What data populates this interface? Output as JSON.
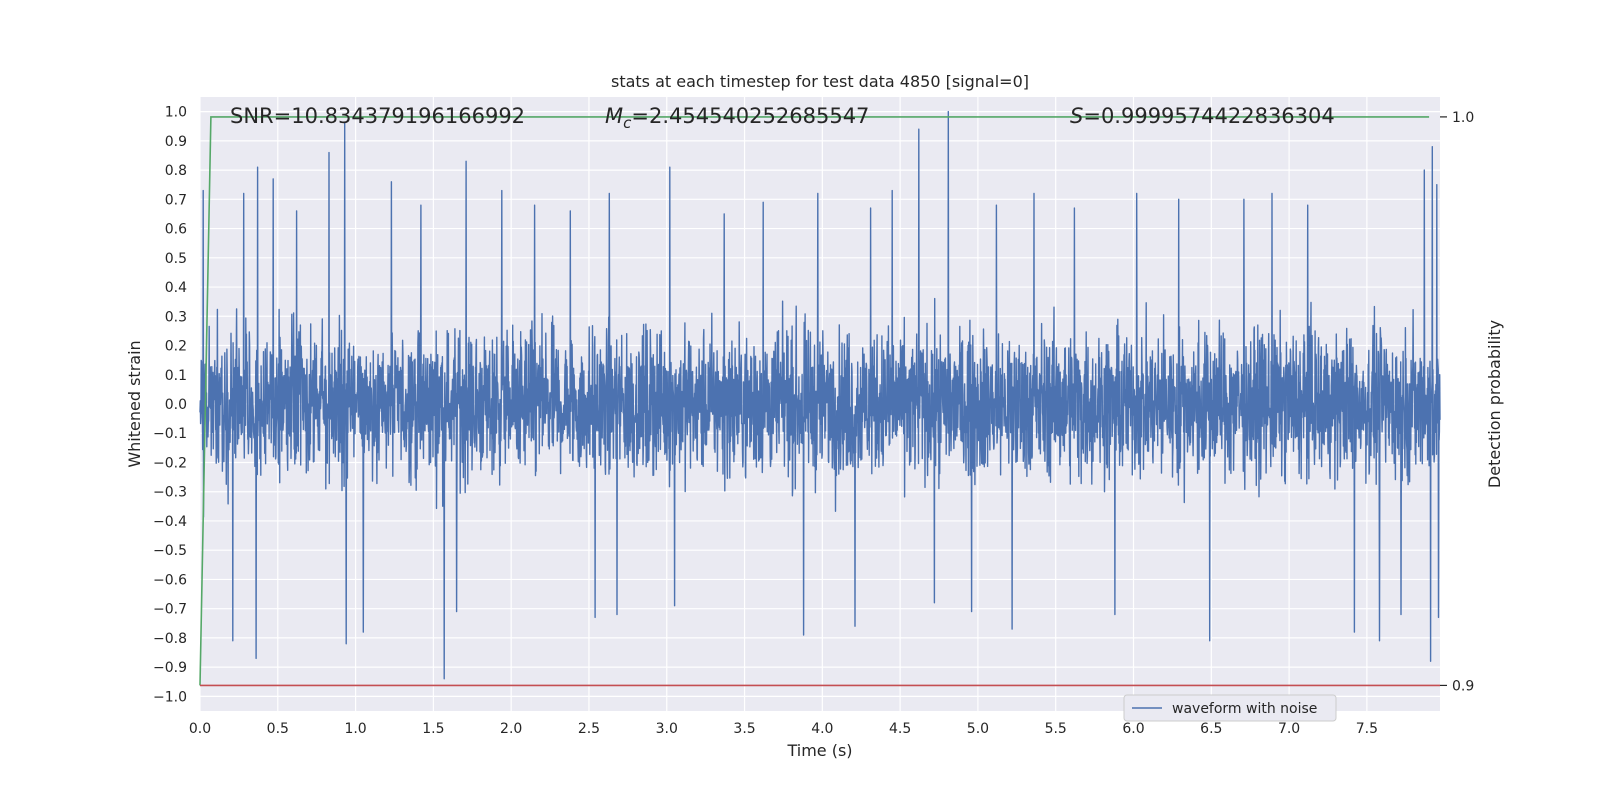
{
  "chart_data": {
    "type": "line",
    "title": "stats at each timestep for test data 4850 [signal=0]",
    "xlabel": "Time (s)",
    "ylabel": "Whitened strain",
    "y2label": "Detection probability",
    "xlim": [
      0.0,
      7.97
    ],
    "ylim": [
      -1.05,
      1.05
    ],
    "y2lim": [
      0.8955,
      1.0035
    ],
    "x_ticks": [
      "0.0",
      "0.5",
      "1.0",
      "1.5",
      "2.0",
      "2.5",
      "3.0",
      "3.5",
      "4.0",
      "4.5",
      "5.0",
      "5.5",
      "6.0",
      "6.5",
      "7.0",
      "7.5"
    ],
    "y_ticks": [
      "1.0",
      "0.9",
      "0.8",
      "0.7",
      "0.6",
      "0.5",
      "0.4",
      "0.3",
      "0.2",
      "0.1",
      "0.0",
      "−0.1",
      "−0.2",
      "−0.3",
      "−0.4",
      "−0.5",
      "−0.6",
      "−0.7",
      "−0.8",
      "−0.9",
      "−1.0"
    ],
    "y2_ticks": [
      "1.0",
      "0.9"
    ],
    "grid": true,
    "legend_position": "lower-right",
    "annotations": {
      "snr": "SNR=10.834379196166992",
      "mc_symbol": "M",
      "mc_sub": "c",
      "mc_value": "=2.454540252685547",
      "s_symbol": "S",
      "s_value": "=0.9999574422836304"
    },
    "series": [
      {
        "name": "waveform with noise",
        "axis": "left",
        "color": "#4c72b0",
        "description_values": "dense noise roughly within ±0.5 with spikes",
        "spikes": [
          {
            "x": 0.02,
            "y": 0.73
          },
          {
            "x": 0.28,
            "y": 0.72
          },
          {
            "x": 0.37,
            "y": 0.81
          },
          {
            "x": 0.36,
            "y": -0.87
          },
          {
            "x": 0.21,
            "y": -0.81
          },
          {
            "x": 0.47,
            "y": 0.77
          },
          {
            "x": 0.62,
            "y": 0.66
          },
          {
            "x": 0.83,
            "y": 0.86
          },
          {
            "x": 0.93,
            "y": 0.96
          },
          {
            "x": 0.94,
            "y": -0.82
          },
          {
            "x": 1.05,
            "y": -0.78
          },
          {
            "x": 1.23,
            "y": 0.76
          },
          {
            "x": 1.42,
            "y": 0.68
          },
          {
            "x": 1.57,
            "y": -0.94
          },
          {
            "x": 1.71,
            "y": 0.83
          },
          {
            "x": 1.65,
            "y": -0.71
          },
          {
            "x": 1.94,
            "y": 0.73
          },
          {
            "x": 2.15,
            "y": 0.68
          },
          {
            "x": 2.38,
            "y": 0.66
          },
          {
            "x": 2.54,
            "y": -0.73
          },
          {
            "x": 2.63,
            "y": 0.72
          },
          {
            "x": 2.68,
            "y": -0.72
          },
          {
            "x": 3.02,
            "y": 0.81
          },
          {
            "x": 3.05,
            "y": -0.69
          },
          {
            "x": 3.37,
            "y": 0.65
          },
          {
            "x": 3.62,
            "y": 0.69
          },
          {
            "x": 3.88,
            "y": -0.79
          },
          {
            "x": 3.97,
            "y": 0.72
          },
          {
            "x": 4.21,
            "y": -0.76
          },
          {
            "x": 4.31,
            "y": 0.67
          },
          {
            "x": 4.45,
            "y": 0.73
          },
          {
            "x": 4.62,
            "y": 0.94
          },
          {
            "x": 4.72,
            "y": -0.68
          },
          {
            "x": 4.81,
            "y": 1.0
          },
          {
            "x": 4.96,
            "y": -0.71
          },
          {
            "x": 5.12,
            "y": 0.68
          },
          {
            "x": 5.22,
            "y": -0.77
          },
          {
            "x": 5.36,
            "y": 0.72
          },
          {
            "x": 5.62,
            "y": 0.67
          },
          {
            "x": 5.88,
            "y": -0.72
          },
          {
            "x": 6.02,
            "y": 0.72
          },
          {
            "x": 6.29,
            "y": 0.7
          },
          {
            "x": 6.49,
            "y": -0.81
          },
          {
            "x": 6.71,
            "y": 0.7
          },
          {
            "x": 6.89,
            "y": 0.72
          },
          {
            "x": 7.12,
            "y": 0.68
          },
          {
            "x": 7.42,
            "y": -0.78
          },
          {
            "x": 7.58,
            "y": -0.81
          },
          {
            "x": 7.72,
            "y": -0.72
          },
          {
            "x": 7.87,
            "y": 0.8
          },
          {
            "x": 7.92,
            "y": 0.88
          },
          {
            "x": 7.91,
            "y": -0.88
          },
          {
            "x": 7.95,
            "y": 0.75
          },
          {
            "x": 7.96,
            "y": -0.73
          }
        ]
      },
      {
        "name": "",
        "axis": "right",
        "color": "#55a868",
        "x": [
          0.0,
          0.07,
          7.9
        ],
        "values": [
          0.9,
          1.0,
          1.0
        ]
      },
      {
        "name": "",
        "axis": "right",
        "color": "#c44e52",
        "x": [
          0.0,
          7.97
        ],
        "values": [
          0.9,
          0.9
        ]
      }
    ]
  }
}
